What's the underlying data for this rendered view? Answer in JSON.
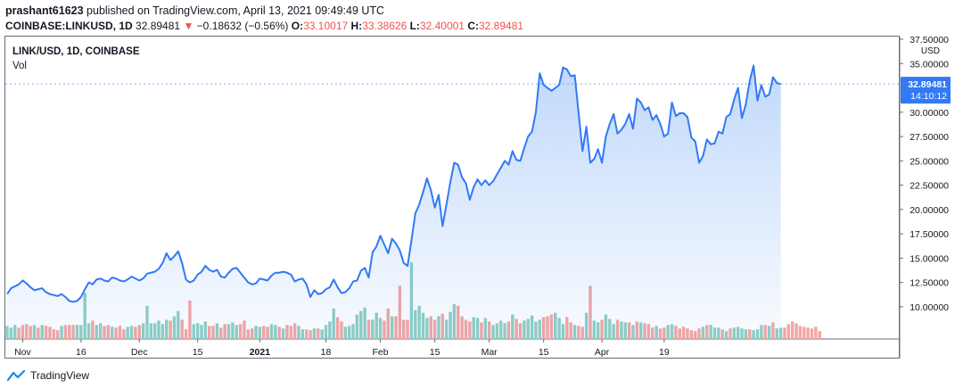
{
  "header": {
    "publisher": "prashant61623",
    "published_text": "published on TradingView.com, April 13, 2021 09:49:49 UTC",
    "symbol_line": "COINBASE:LINKUSD, 1D",
    "last": "32.89481",
    "change": "−0.18632 (−0.56%)",
    "o_label": "O:",
    "o_value": "33.10017",
    "h_label": "H:",
    "h_value": "33.38626",
    "l_label": "L:",
    "l_value": "32.40001",
    "c_label": "C:",
    "c_value": "32.89481"
  },
  "legend": {
    "title": "LINK/USD, 1D, COINBASE",
    "vol": "Vol"
  },
  "footer": {
    "brand": "TradingView"
  },
  "colors": {
    "line": "#3179f5",
    "up_vol": "#8fcfc4",
    "down_vol": "#f3a6a4",
    "red": "#ef5350",
    "axis_text": "#131722"
  },
  "chart_data": {
    "type": "area",
    "title": "LINK/USD, 1D, COINBASE",
    "ylabel": "USD",
    "ylim": [
      8.8,
      37.5
    ],
    "y_ticks": [
      "37.50000",
      "35.00000",
      "30.00000",
      "27.50000",
      "25.00000",
      "22.50000",
      "20.00000",
      "17.50000",
      "15.00000",
      "12.50000",
      "10.00000"
    ],
    "x_ticks": [
      "Nov",
      "16",
      "Dec",
      "15",
      "2021",
      "18",
      "Feb",
      "15",
      "Mar",
      "15",
      "Apr",
      "19"
    ],
    "x_tick_days": [
      4,
      19,
      34,
      49,
      65,
      82,
      96,
      110,
      124,
      138,
      153,
      169
    ],
    "last_price_label": "32.89481",
    "countdown_label": "14:10:12",
    "series": [
      {
        "values": [
          11.3,
          11.9,
          12.1,
          12.3,
          12.7,
          12.4,
          12.0,
          11.7,
          11.8,
          11.9,
          11.5,
          11.3,
          11.2,
          11.1,
          11.3,
          11.0,
          10.6,
          10.5,
          10.6,
          11.0,
          11.8,
          12.5,
          12.3,
          12.8,
          12.9,
          12.7,
          12.6,
          13.0,
          12.9,
          12.7,
          12.6,
          12.8,
          13.1,
          12.9,
          12.7,
          12.9,
          13.4,
          13.5,
          13.6,
          13.9,
          14.5,
          15.5,
          14.8,
          15.2,
          15.7,
          14.5,
          12.8,
          12.5,
          12.7,
          13.3,
          13.6,
          14.2,
          13.8,
          13.6,
          13.8,
          13.1,
          13.0,
          13.5,
          13.9,
          14.0,
          13.5,
          13.0,
          12.5,
          12.3,
          12.4,
          12.9,
          12.8,
          12.7,
          13.2,
          13.5,
          13.5,
          13.6,
          13.5,
          13.3,
          12.6,
          12.8,
          12.9,
          12.3,
          11.0,
          11.7,
          11.3,
          11.4,
          11.8,
          12.0,
          12.8,
          12.0,
          11.4,
          11.5,
          11.9,
          12.6,
          12.7,
          13.7,
          14.0,
          13.0,
          15.6,
          16.2,
          17.3,
          16.4,
          15.5,
          17.0,
          16.5,
          15.8,
          14.5,
          14.2,
          16.8,
          19.6,
          20.5,
          21.8,
          23.2,
          22.0,
          20.2,
          21.5,
          18.3,
          20.5,
          22.8,
          24.8,
          24.6,
          23.3,
          22.7,
          21.0,
          22.3,
          23.1,
          22.5,
          23.0,
          22.5,
          22.9,
          23.6,
          24.3,
          25.0,
          24.6,
          26.0,
          25.1,
          25.0,
          26.3,
          27.5,
          28.0,
          30.0,
          34.0,
          32.8,
          32.5,
          32.2,
          32.5,
          32.8,
          34.6,
          34.4,
          33.7,
          33.8,
          29.9,
          26.0,
          28.5,
          24.8,
          25.2,
          26.2,
          24.8,
          27.5,
          28.8,
          29.8,
          27.8,
          28.2,
          28.8,
          29.8,
          28.3,
          31.4,
          31.0,
          30.2,
          30.5,
          29.2,
          29.7,
          28.8,
          27.5,
          27.8,
          31.0,
          29.6,
          29.9,
          29.9,
          29.5,
          27.4,
          27.0,
          24.8,
          25.5,
          27.2,
          26.7,
          26.8,
          28.0,
          27.8,
          29.5,
          29.8,
          31.3,
          32.5,
          29.4,
          30.8,
          33.2,
          34.8,
          31.2,
          32.8,
          31.6,
          31.8,
          33.6,
          33.0,
          32.9
        ]
      },
      {
        "name": "Vol",
        "volumes": [
          15,
          13,
          16,
          13,
          16,
          17,
          15,
          16,
          13,
          16,
          15,
          14,
          11,
          10,
          15,
          16,
          16,
          16,
          16,
          16,
          53,
          18,
          21,
          16,
          18,
          15,
          16,
          14,
          13,
          15,
          11,
          14,
          15,
          14,
          16,
          18,
          38,
          18,
          18,
          21,
          17,
          22,
          21,
          26,
          32,
          22,
          11,
          44,
          17,
          18,
          16,
          20,
          15,
          15,
          18,
          13,
          17,
          17,
          19,
          16,
          17,
          21,
          11,
          12,
          15,
          14,
          15,
          14,
          17,
          16,
          14,
          12,
          16,
          15,
          18,
          15,
          11,
          11,
          10,
          12,
          12,
          11,
          16,
          20,
          35,
          25,
          20,
          14,
          15,
          17,
          28,
          32,
          36,
          22,
          22,
          30,
          24,
          21,
          35,
          26,
          26,
          61,
          22,
          22,
          88,
          33,
          38,
          30,
          24,
          26,
          22,
          26,
          29,
          22,
          31,
          40,
          38,
          26,
          22,
          20,
          25,
          24,
          19,
          24,
          20,
          16,
          18,
          21,
          18,
          20,
          28,
          23,
          18,
          21,
          23,
          27,
          20,
          22,
          25,
          26,
          28,
          30,
          24,
          17,
          25,
          19,
          16,
          15,
          14,
          30,
          61,
          21,
          19,
          22,
          28,
          23,
          17,
          22,
          20,
          19,
          19,
          16,
          20,
          19,
          18,
          17,
          13,
          15,
          12,
          13,
          16,
          17,
          15,
          12,
          14,
          12,
          10,
          9,
          12,
          14,
          16,
          16,
          13,
          13,
          11,
          9,
          12,
          13,
          14,
          12,
          11,
          11,
          10,
          11,
          16,
          16,
          15,
          19,
          12,
          13,
          13,
          17,
          20,
          18,
          15,
          14,
          13,
          12,
          14,
          9
        ],
        "up": [
          true,
          true,
          true,
          false,
          false,
          false,
          false,
          true,
          false,
          true,
          false,
          false,
          false,
          false,
          true,
          false,
          false,
          false,
          true,
          true,
          true,
          true,
          false,
          true,
          true,
          false,
          false,
          true,
          false,
          false,
          false,
          true,
          true,
          false,
          false,
          true,
          true,
          true,
          true,
          true,
          true,
          true,
          false,
          true,
          true,
          false,
          false,
          false,
          true,
          true,
          true,
          true,
          false,
          false,
          true,
          false,
          false,
          true,
          true,
          true,
          false,
          false,
          false,
          false,
          true,
          true,
          false,
          false,
          true,
          true,
          false,
          true,
          false,
          false,
          false,
          true,
          true,
          false,
          false,
          true,
          false,
          true,
          true,
          true,
          true,
          false,
          false,
          true,
          true,
          true,
          true,
          true,
          true,
          false,
          true,
          true,
          true,
          false,
          false,
          true,
          false,
          false,
          false,
          false,
          true,
          true,
          true,
          true,
          true,
          false,
          false,
          true,
          false,
          true,
          true,
          true,
          false,
          false,
          false,
          false,
          true,
          true,
          false,
          true,
          false,
          true,
          true,
          true,
          true,
          false,
          true,
          false,
          false,
          true,
          true,
          true,
          true,
          true,
          false,
          false,
          false,
          true,
          true,
          true,
          false,
          false,
          true,
          false,
          false,
          true,
          false,
          true,
          true,
          false,
          true,
          true,
          true,
          false,
          true,
          true,
          false,
          true,
          false,
          true,
          false,
          false,
          false,
          true,
          false,
          false,
          true,
          true,
          false,
          false,
          false,
          false,
          false,
          false,
          false,
          true,
          false,
          true,
          true,
          true,
          false,
          true,
          false,
          true,
          true,
          true,
          true,
          false,
          true,
          true,
          true,
          false,
          true,
          false,
          true,
          true,
          false,
          false
        ]
      }
    ]
  }
}
